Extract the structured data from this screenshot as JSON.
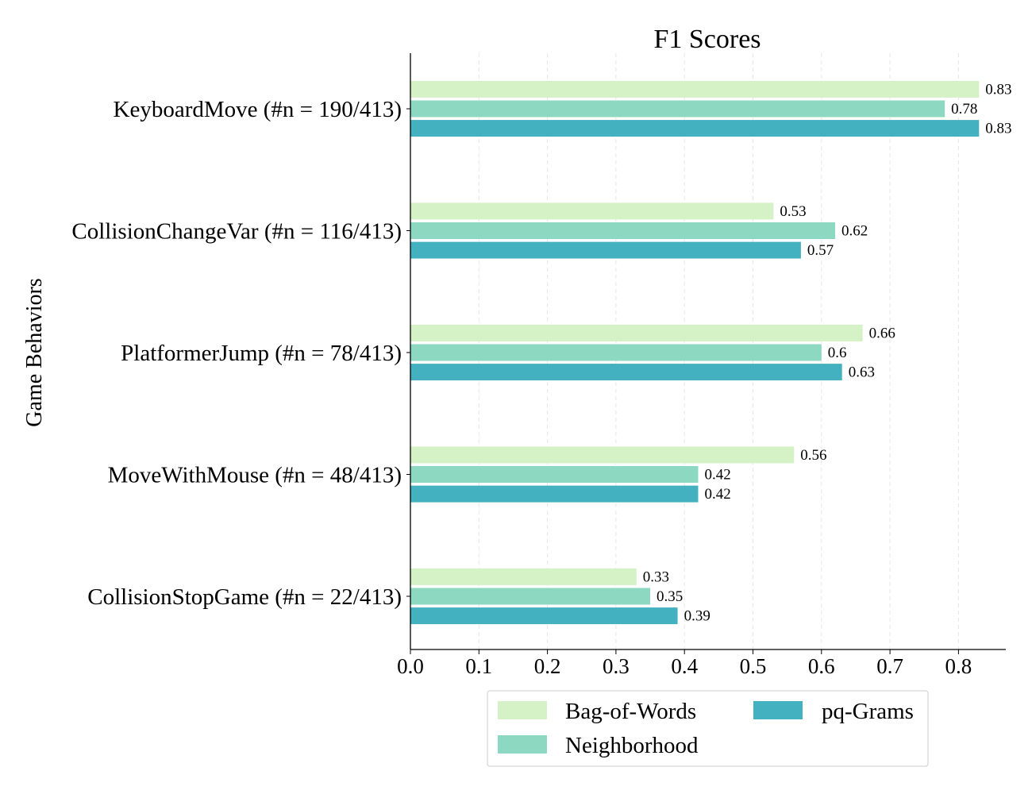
{
  "chart_data": {
    "type": "bar",
    "orientation": "horizontal",
    "title": "F1 Scores",
    "xlabel": "",
    "ylabel": "Game Behaviors",
    "xlim": [
      0,
      0.87
    ],
    "xticks": [
      "0.0",
      "0.1",
      "0.2",
      "0.3",
      "0.4",
      "0.5",
      "0.6",
      "0.7",
      "0.8"
    ],
    "grid": "vertical dashed",
    "legend_position": "bottom-center",
    "categories": [
      "KeyboardMove (#n = 190/413)",
      "CollisionChangeVar (#n = 116/413)",
      "PlatformerJump (#n = 78/413)",
      "MoveWithMouse (#n = 48/413)",
      "CollisionStopGame (#n = 22/413)"
    ],
    "series": [
      {
        "name": "Bag-of-Words",
        "color": "#d5f1c6",
        "values": [
          0.83,
          0.53,
          0.66,
          0.56,
          0.33
        ],
        "labels": [
          "0.83",
          "0.53",
          "0.66",
          "0.56",
          "0.33"
        ]
      },
      {
        "name": "Neighborhood",
        "color": "#8cd8c1",
        "values": [
          0.78,
          0.62,
          0.6,
          0.42,
          0.35
        ],
        "labels": [
          "0.78",
          "0.62",
          "0.6",
          "0.42",
          "0.35"
        ]
      },
      {
        "name": "pq-Grams",
        "color": "#44b1c0",
        "values": [
          0.83,
          0.57,
          0.63,
          0.42,
          0.39
        ],
        "labels": [
          "0.83",
          "0.57",
          "0.63",
          "0.42",
          "0.39"
        ]
      }
    ]
  }
}
